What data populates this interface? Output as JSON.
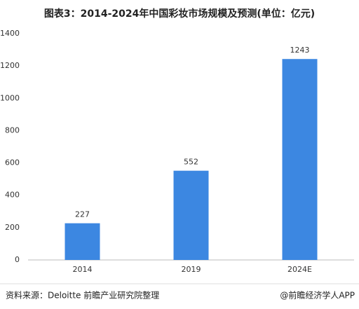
{
  "chart_data": {
    "type": "bar",
    "title": "图表3：2014-2024年中国彩妆市场规模及预测(单位：亿元)",
    "categories": [
      "2014",
      "2019",
      "2024E"
    ],
    "values": [
      227,
      552,
      1243
    ],
    "color": "#3c87e1",
    "ylim": [
      0,
      1400
    ],
    "yticks": [
      0,
      200,
      400,
      600,
      800,
      1000,
      1200,
      1400
    ],
    "grid": false,
    "source": "资料来源：Deloitte 前瞻产业研究院整理",
    "credit": "@前瞻经济学人APP"
  }
}
